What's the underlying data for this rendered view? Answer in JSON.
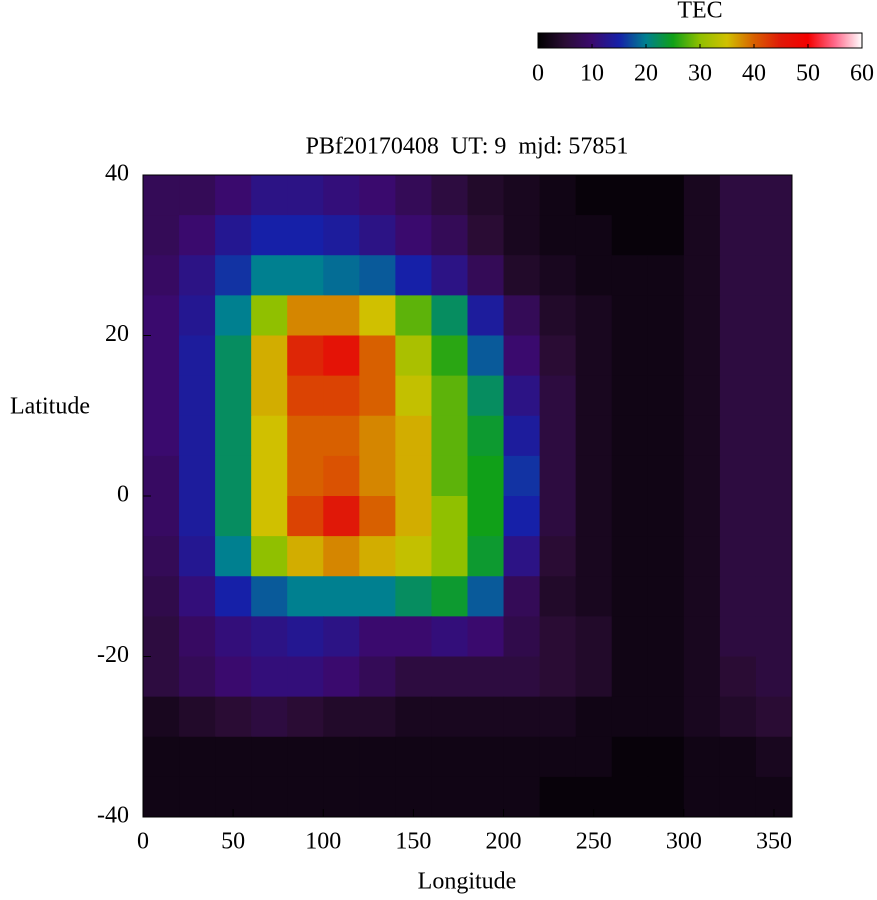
{
  "chart_data": {
    "type": "heatmap",
    "title": "PBf20170408  UT: 9  mjd: 57851",
    "x_label": "Longitude",
    "y_label": "Latitude",
    "colorbar_label": "TEC",
    "x": [
      10,
      30,
      50,
      70,
      90,
      110,
      130,
      150,
      170,
      190,
      210,
      230,
      250,
      270,
      290,
      310,
      330,
      350
    ],
    "y": [
      37.5,
      32.5,
      27.5,
      22.5,
      17.5,
      12.5,
      7.5,
      2.5,
      -2.5,
      -7.5,
      -12.5,
      -17.5,
      -22.5,
      -27.5,
      -32.5,
      -37.5
    ],
    "z": [
      [
        8,
        8,
        10,
        12,
        12,
        11,
        10,
        8,
        6,
        4,
        3,
        2,
        1,
        1,
        1,
        3,
        6,
        6
      ],
      [
        8,
        10,
        13,
        15,
        15,
        14,
        12,
        10,
        8,
        5,
        3,
        2,
        2,
        1,
        1,
        3,
        6,
        6
      ],
      [
        9,
        12,
        16,
        20,
        20,
        19,
        18,
        15,
        12,
        8,
        4,
        3,
        2,
        2,
        2,
        3,
        6,
        6
      ],
      [
        10,
        13,
        20,
        30,
        38,
        38,
        35,
        28,
        22,
        14,
        8,
        4,
        3,
        2,
        2,
        3,
        6,
        6
      ],
      [
        10,
        14,
        22,
        36,
        44,
        46,
        40,
        32,
        26,
        18,
        10,
        5,
        3,
        2,
        2,
        3,
        6,
        6
      ],
      [
        10,
        14,
        22,
        36,
        42,
        42,
        40,
        34,
        28,
        22,
        12,
        6,
        3,
        2,
        2,
        3,
        6,
        6
      ],
      [
        10,
        14,
        22,
        35,
        40,
        40,
        38,
        36,
        28,
        24,
        14,
        6,
        3,
        2,
        2,
        3,
        6,
        6
      ],
      [
        9,
        14,
        22,
        35,
        40,
        41,
        38,
        36,
        28,
        25,
        16,
        6,
        3,
        2,
        2,
        3,
        6,
        6
      ],
      [
        9,
        14,
        22,
        35,
        42,
        45,
        40,
        36,
        30,
        25,
        15,
        6,
        3,
        2,
        2,
        3,
        6,
        6
      ],
      [
        8,
        13,
        20,
        30,
        36,
        38,
        36,
        34,
        30,
        24,
        12,
        5,
        3,
        2,
        2,
        3,
        6,
        6
      ],
      [
        7,
        11,
        15,
        18,
        20,
        20,
        20,
        22,
        24,
        18,
        8,
        4,
        3,
        2,
        2,
        3,
        6,
        6
      ],
      [
        6,
        9,
        11,
        12,
        13,
        12,
        10,
        10,
        11,
        10,
        7,
        5,
        4,
        2,
        2,
        3,
        6,
        6
      ],
      [
        6,
        8,
        10,
        11,
        11,
        10,
        8,
        6,
        6,
        6,
        6,
        5,
        4,
        2,
        2,
        3,
        5,
        6
      ],
      [
        3,
        4,
        5,
        6,
        5,
        4,
        4,
        3,
        3,
        3,
        3,
        3,
        2,
        2,
        2,
        3,
        4,
        5
      ],
      [
        2,
        2,
        2,
        2,
        2,
        2,
        2,
        2,
        2,
        2,
        2,
        2,
        2,
        1,
        1,
        2,
        2,
        3
      ],
      [
        2,
        2,
        2,
        2,
        2,
        2,
        2,
        2,
        2,
        2,
        2,
        1,
        1,
        1,
        1,
        2,
        2,
        2
      ]
    ],
    "xlim": [
      0,
      360
    ],
    "ylim": [
      -40,
      40
    ],
    "zlim": [
      0,
      60
    ],
    "xticks": [
      0,
      50,
      100,
      150,
      200,
      250,
      300,
      350
    ],
    "yticks": [
      -40,
      -20,
      0,
      20,
      40
    ],
    "zticks": [
      0,
      10,
      20,
      30,
      40,
      50,
      60
    ],
    "colorscale": [
      "#000000",
      "#2a0c34",
      "#3a0a6e",
      "#1620a8",
      "#008090",
      "#10a018",
      "#90c000",
      "#d0c000",
      "#d86000",
      "#e01808",
      "#f40000",
      "#ff6a8c",
      "#ffffff"
    ]
  }
}
